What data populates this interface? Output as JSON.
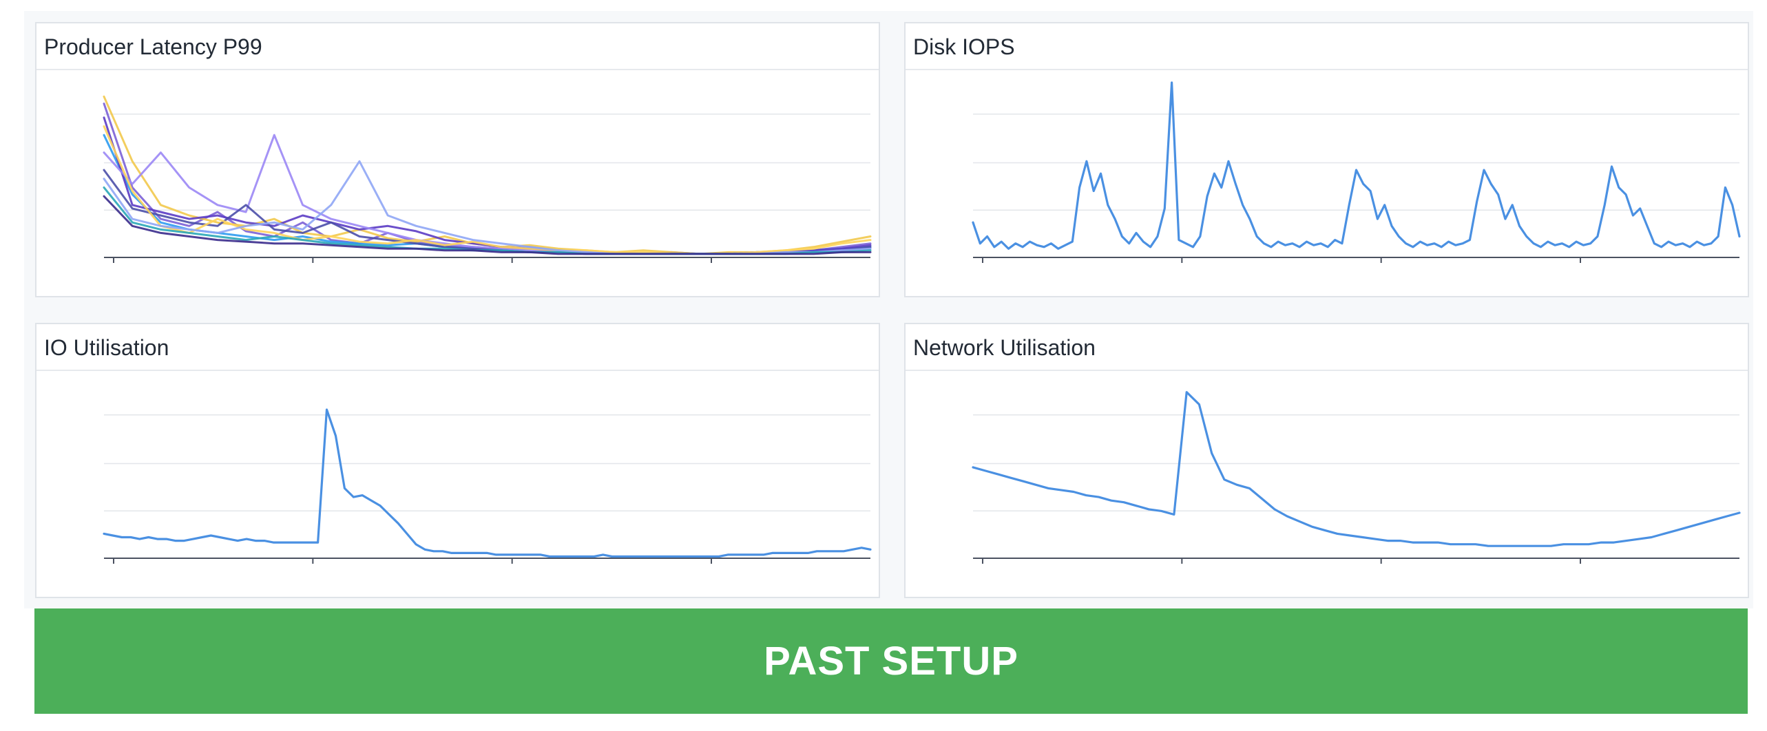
{
  "panels": [
    {
      "title": "Producer Latency P99",
      "chart_data": {
        "type": "line",
        "title": "Producer Latency P99",
        "xlabel": "",
        "ylabel": "",
        "ylim": [
          0,
          100
        ],
        "grid": true,
        "legend": "none",
        "series_colors": [
          "#7b61d6",
          "#f2c94c",
          "#2d9bf0",
          "#5b3cc4",
          "#9b87f5",
          "#4b4fa8",
          "#ffd45c",
          "#8fa6f5",
          "#2aa7b8",
          "#3a2b8c"
        ],
        "series": [
          {
            "values": [
              88,
              40,
              22,
              18,
              26,
              15,
              12,
              20,
              10,
              8,
              14,
              9,
              7,
              6,
              5,
              6,
              4,
              3,
              3,
              2,
              3,
              2,
              2,
              3,
              3,
              4,
              6,
              8
            ]
          },
          {
            "values": [
              92,
              55,
              30,
              24,
              20,
              18,
              22,
              14,
              12,
              16,
              11,
              9,
              12,
              8,
              6,
              7,
              5,
              4,
              3,
              4,
              3,
              2,
              3,
              3,
              4,
              6,
              9,
              12
            ]
          },
          {
            "values": [
              70,
              36,
              20,
              16,
              14,
              12,
              10,
              12,
              9,
              8,
              7,
              8,
              6,
              5,
              4,
              5,
              3,
              3,
              2,
              2,
              2,
              2,
              2,
              3,
              3,
              4,
              5,
              6
            ]
          },
          {
            "values": [
              80,
              30,
              26,
              22,
              24,
              20,
              18,
              24,
              20,
              16,
              18,
              15,
              10,
              8,
              6,
              5,
              4,
              3,
              2,
              2,
              2,
              2,
              2,
              2,
              3,
              4,
              5,
              7
            ]
          },
          {
            "values": [
              60,
              42,
              60,
              40,
              30,
              26,
              70,
              30,
              22,
              18,
              14,
              10,
              8,
              6,
              5,
              4,
              3,
              3,
              2,
              2,
              2,
              2,
              2,
              3,
              3,
              3,
              4,
              5
            ]
          },
          {
            "values": [
              50,
              28,
              24,
              20,
              18,
              30,
              16,
              14,
              20,
              12,
              10,
              8,
              6,
              5,
              4,
              3,
              3,
              2,
              2,
              2,
              2,
              2,
              2,
              2,
              3,
              3,
              4,
              6
            ]
          },
          {
            "values": [
              75,
              38,
              18,
              14,
              22,
              16,
              14,
              10,
              12,
              9,
              8,
              10,
              7,
              9,
              6,
              5,
              4,
              4,
              3,
              3,
              2,
              2,
              2,
              3,
              4,
              5,
              8,
              10
            ]
          },
          {
            "values": [
              45,
              22,
              18,
              16,
              14,
              18,
              20,
              16,
              30,
              55,
              24,
              18,
              14,
              10,
              8,
              6,
              4,
              3,
              2,
              2,
              2,
              2,
              2,
              2,
              3,
              3,
              4,
              5
            ]
          },
          {
            "values": [
              40,
              20,
              16,
              14,
              12,
              10,
              12,
              10,
              8,
              7,
              6,
              5,
              5,
              4,
              4,
              3,
              3,
              2,
              2,
              2,
              2,
              2,
              2,
              2,
              2,
              3,
              3,
              4
            ]
          },
          {
            "values": [
              35,
              18,
              14,
              12,
              10,
              9,
              8,
              8,
              7,
              6,
              5,
              5,
              4,
              4,
              3,
              3,
              2,
              2,
              2,
              2,
              2,
              2,
              2,
              2,
              2,
              2,
              3,
              3
            ]
          }
        ]
      }
    },
    {
      "title": "Disk IOPS",
      "chart_data": {
        "type": "line",
        "title": "Disk IOPS",
        "xlabel": "",
        "ylabel": "",
        "ylim": [
          0,
          100
        ],
        "grid": true,
        "legend": "none",
        "series_colors": [
          "#4a90e2"
        ],
        "series": [
          {
            "values": [
              20,
              8,
              12,
              6,
              9,
              5,
              8,
              6,
              9,
              7,
              6,
              8,
              5,
              7,
              9,
              40,
              55,
              38,
              48,
              30,
              22,
              12,
              8,
              14,
              9,
              6,
              12,
              28,
              100,
              10,
              8,
              6,
              12,
              35,
              48,
              40,
              55,
              42,
              30,
              22,
              12,
              8,
              6,
              9,
              7,
              8,
              6,
              9,
              7,
              8,
              6,
              10,
              8,
              30,
              50,
              42,
              38,
              22,
              30,
              18,
              12,
              8,
              6,
              9,
              7,
              8,
              6,
              9,
              7,
              8,
              10,
              32,
              50,
              42,
              36,
              22,
              30,
              18,
              12,
              8,
              6,
              9,
              7,
              8,
              6,
              9,
              7,
              8,
              12,
              30,
              52,
              40,
              36,
              24,
              28,
              18,
              8,
              6,
              9,
              7,
              8,
              6,
              9,
              7,
              8,
              12,
              40,
              30,
              12
            ]
          }
        ]
      }
    },
    {
      "title": "IO Utilisation",
      "chart_data": {
        "type": "line",
        "title": "IO Utilisation",
        "xlabel": "",
        "ylabel": "",
        "ylim": [
          0,
          100
        ],
        "grid": true,
        "legend": "none",
        "series_colors": [
          "#4a90e2"
        ],
        "series": [
          {
            "values": [
              14,
              13,
              12,
              12,
              11,
              12,
              11,
              11,
              10,
              10,
              11,
              12,
              13,
              12,
              11,
              10,
              11,
              10,
              10,
              9,
              9,
              9,
              9,
              9,
              9,
              85,
              70,
              40,
              35,
              36,
              33,
              30,
              25,
              20,
              14,
              8,
              5,
              4,
              4,
              3,
              3,
              3,
              3,
              3,
              2,
              2,
              2,
              2,
              2,
              2,
              1,
              1,
              1,
              1,
              1,
              1,
              2,
              1,
              1,
              1,
              1,
              1,
              1,
              1,
              1,
              1,
              1,
              1,
              1,
              1,
              2,
              2,
              2,
              2,
              2,
              3,
              3,
              3,
              3,
              3,
              4,
              4,
              4,
              4,
              5,
              6,
              5
            ]
          }
        ]
      }
    },
    {
      "title": "Network Utilisation",
      "chart_data": {
        "type": "line",
        "title": "Network Utilisation",
        "xlabel": "",
        "ylabel": "",
        "ylim": [
          0,
          100
        ],
        "grid": true,
        "legend": "none",
        "series_colors": [
          "#4a90e2"
        ],
        "series": [
          {
            "values": [
              52,
              50,
              48,
              46,
              44,
              42,
              40,
              39,
              38,
              36,
              35,
              33,
              32,
              30,
              28,
              27,
              25,
              95,
              88,
              60,
              45,
              42,
              40,
              34,
              28,
              24,
              21,
              18,
              16,
              14,
              13,
              12,
              11,
              10,
              10,
              9,
              9,
              9,
              8,
              8,
              8,
              7,
              7,
              7,
              7,
              7,
              7,
              8,
              8,
              8,
              9,
              9,
              10,
              11,
              12,
              14,
              16,
              18,
              20,
              22,
              24,
              26
            ]
          }
        ]
      }
    }
  ],
  "banner": {
    "label": "PAST SETUP",
    "color": "#4caf59"
  }
}
